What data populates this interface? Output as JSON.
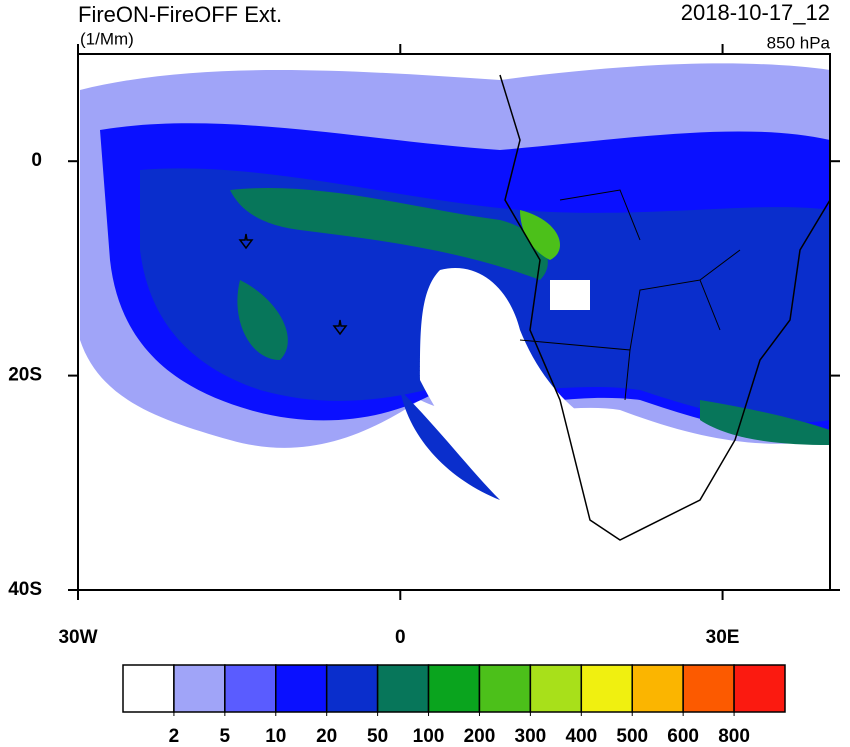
{
  "header": {
    "title": "FireON-FireOFF Ext.",
    "units": "(1/Mm)",
    "date": "2018-10-17_12",
    "level": "850 hPa"
  },
  "map": {
    "lonlim": [
      -30,
      40
    ],
    "latlim": [
      -40,
      10
    ],
    "xticks": [
      {
        "value": -30,
        "label": "30W"
      },
      {
        "value": 0,
        "label": "0"
      },
      {
        "value": 30,
        "label": "30E"
      }
    ],
    "yticks": [
      {
        "value": 0,
        "label": "0"
      },
      {
        "value": -20,
        "label": "20S"
      },
      {
        "value": -40,
        "label": "40S"
      }
    ]
  },
  "colorbar": {
    "levels": [
      2,
      5,
      10,
      20,
      50,
      100,
      200,
      300,
      400,
      500,
      600,
      800
    ],
    "colors": [
      "#ffffff",
      "#a0a4f8",
      "#5a5cff",
      "#0a10ff",
      "#0a2ecc",
      "#07765a",
      "#0aa41e",
      "#4cc01a",
      "#a8e01a",
      "#f0f010",
      "#fbb500",
      "#fc5a00",
      "#fb1a10"
    ]
  }
}
